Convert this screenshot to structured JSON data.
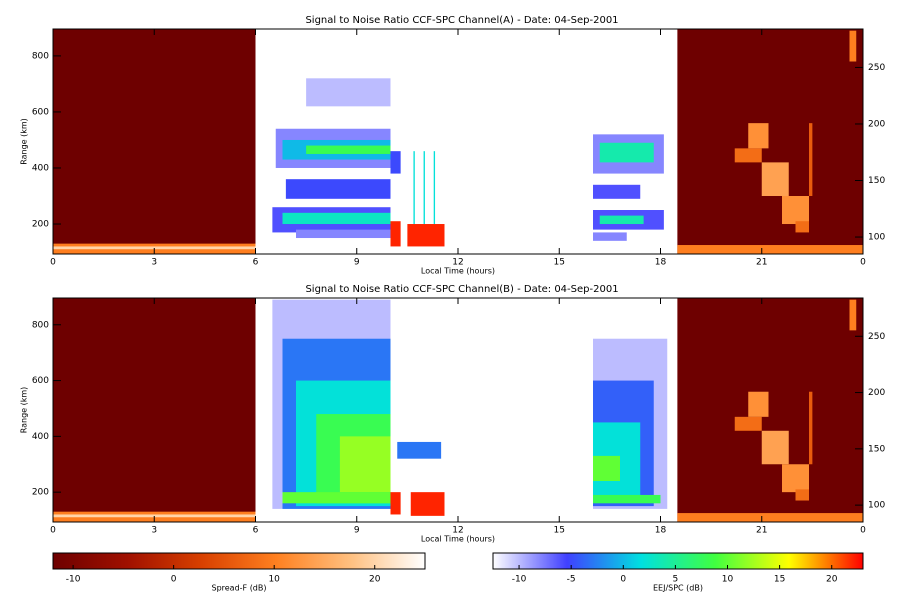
{
  "chart_data": [
    {
      "type": "heatmap",
      "title": "Signal to Noise Ratio CCF-SPC Channel(A) - Date: 04-Sep-2001",
      "xlabel": "Local Time (hours)",
      "ylabel": "Range (km)",
      "xlim": [
        0,
        24
      ],
      "xticks": [
        0,
        3,
        6,
        9,
        12,
        15,
        18,
        21,
        {
          "value": 24,
          "label": "0"
        }
      ],
      "ylim": [
        93,
        896
      ],
      "yticks": [
        200,
        400,
        600,
        800
      ],
      "y2lim": [
        85,
        284
      ],
      "y2ticks": [
        100,
        150,
        200,
        250
      ],
      "spread_f_cells": [
        [
          0,
          6,
          93,
          896,
          -12
        ],
        [
          18.5,
          24,
          93,
          896,
          -12
        ],
        [
          0,
          6,
          93,
          130,
          10
        ],
        [
          0,
          6,
          110,
          120,
          20
        ],
        [
          18.5,
          24,
          93,
          125,
          10
        ],
        [
          20.2,
          21.0,
          420,
          470,
          8
        ],
        [
          20.6,
          21.2,
          470,
          560,
          12
        ],
        [
          21.0,
          21.8,
          300,
          420,
          14
        ],
        [
          21.6,
          22.4,
          200,
          300,
          12
        ],
        [
          22.0,
          22.4,
          170,
          210,
          8
        ],
        [
          23.6,
          23.8,
          780,
          890,
          10
        ],
        [
          22.4,
          22.5,
          300,
          560,
          6
        ]
      ],
      "eej_cells": [
        [
          7.5,
          10,
          620,
          720,
          -10
        ],
        [
          6.6,
          10,
          400,
          540,
          -8
        ],
        [
          6.8,
          10,
          430,
          500,
          0
        ],
        [
          7.5,
          10,
          450,
          480,
          8
        ],
        [
          6.9,
          10,
          290,
          360,
          -5
        ],
        [
          6.5,
          10,
          170,
          260,
          -6
        ],
        [
          6.8,
          10,
          200,
          240,
          3
        ],
        [
          7.2,
          10,
          150,
          180,
          -8
        ],
        [
          10,
          10.3,
          120,
          210,
          22
        ],
        [
          10.5,
          11.6,
          120,
          200,
          22
        ],
        [
          10.68,
          10.72,
          200,
          460,
          2
        ],
        [
          10.98,
          11.02,
          200,
          460,
          2
        ],
        [
          11.28,
          11.32,
          200,
          460,
          2
        ],
        [
          10,
          10.3,
          380,
          460,
          -5
        ],
        [
          16,
          18.1,
          380,
          520,
          -8
        ],
        [
          16.2,
          17.8,
          420,
          490,
          4
        ],
        [
          16,
          17.4,
          290,
          340,
          -6
        ],
        [
          16,
          18.1,
          180,
          250,
          -6
        ],
        [
          16.2,
          17.5,
          200,
          230,
          4
        ],
        [
          16,
          17,
          140,
          170,
          -8
        ]
      ]
    },
    {
      "type": "heatmap",
      "title": "Signal to Noise Ratio CCF-SPC Channel(B) - Date: 04-Sep-2001",
      "xlabel": "Local Time (hours)",
      "ylabel": "Range (km)",
      "xlim": [
        0,
        24
      ],
      "xticks": [
        0,
        3,
        6,
        9,
        12,
        15,
        18,
        21,
        {
          "value": 24,
          "label": "0"
        }
      ],
      "ylim": [
        93,
        896
      ],
      "yticks": [
        200,
        400,
        600,
        800
      ],
      "y2lim": [
        85,
        284
      ],
      "y2ticks": [
        100,
        150,
        200,
        250
      ],
      "spread_f_cells": [
        [
          0,
          6,
          93,
          896,
          -12
        ],
        [
          18.5,
          24,
          93,
          896,
          -12
        ],
        [
          0,
          6,
          93,
          130,
          10
        ],
        [
          0,
          6,
          110,
          120,
          20
        ],
        [
          18.5,
          24,
          93,
          125,
          10
        ],
        [
          20.2,
          21.0,
          420,
          470,
          8
        ],
        [
          20.6,
          21.2,
          470,
          560,
          12
        ],
        [
          21.0,
          21.8,
          300,
          420,
          14
        ],
        [
          21.6,
          22.4,
          200,
          300,
          12
        ],
        [
          22.0,
          22.4,
          170,
          210,
          8
        ],
        [
          23.6,
          23.8,
          780,
          890,
          10
        ],
        [
          22.4,
          22.5,
          300,
          560,
          6
        ]
      ],
      "eej_cells": [
        [
          6.5,
          10,
          140,
          890,
          -10
        ],
        [
          6.8,
          10,
          140,
          750,
          -3
        ],
        [
          7.2,
          10,
          150,
          600,
          2
        ],
        [
          7.8,
          10,
          160,
          480,
          8
        ],
        [
          8.5,
          10,
          200,
          400,
          12
        ],
        [
          6.8,
          10,
          160,
          200,
          10
        ],
        [
          10,
          10.3,
          120,
          200,
          22
        ],
        [
          10.6,
          11.6,
          115,
          200,
          22
        ],
        [
          10.2,
          11.5,
          320,
          380,
          -3
        ],
        [
          16,
          18.2,
          140,
          750,
          -10
        ],
        [
          16,
          17.8,
          150,
          600,
          -4
        ],
        [
          16,
          17.4,
          170,
          450,
          2
        ],
        [
          16,
          16.8,
          240,
          330,
          10
        ],
        [
          16,
          18,
          160,
          190,
          8
        ]
      ]
    }
  ],
  "colorbars": [
    {
      "label": "Spread-F (dB)",
      "lim": [
        -12,
        25
      ],
      "ticks": [
        -10,
        0,
        10,
        20
      ],
      "colors": [
        "#6e0000",
        "#a01000",
        "#d84000",
        "#ff8020",
        "#ffc080",
        "#ffffff"
      ]
    },
    {
      "label": "EEJ/SPC (dB)",
      "lim": [
        -12.5,
        23
      ],
      "ticks": [
        -10,
        -5,
        0,
        5,
        10,
        15,
        20
      ],
      "colors": [
        "#ffffff",
        "#4040ff",
        "#00e0e0",
        "#40ff40",
        "#ffff00",
        "#ff0000"
      ]
    }
  ]
}
